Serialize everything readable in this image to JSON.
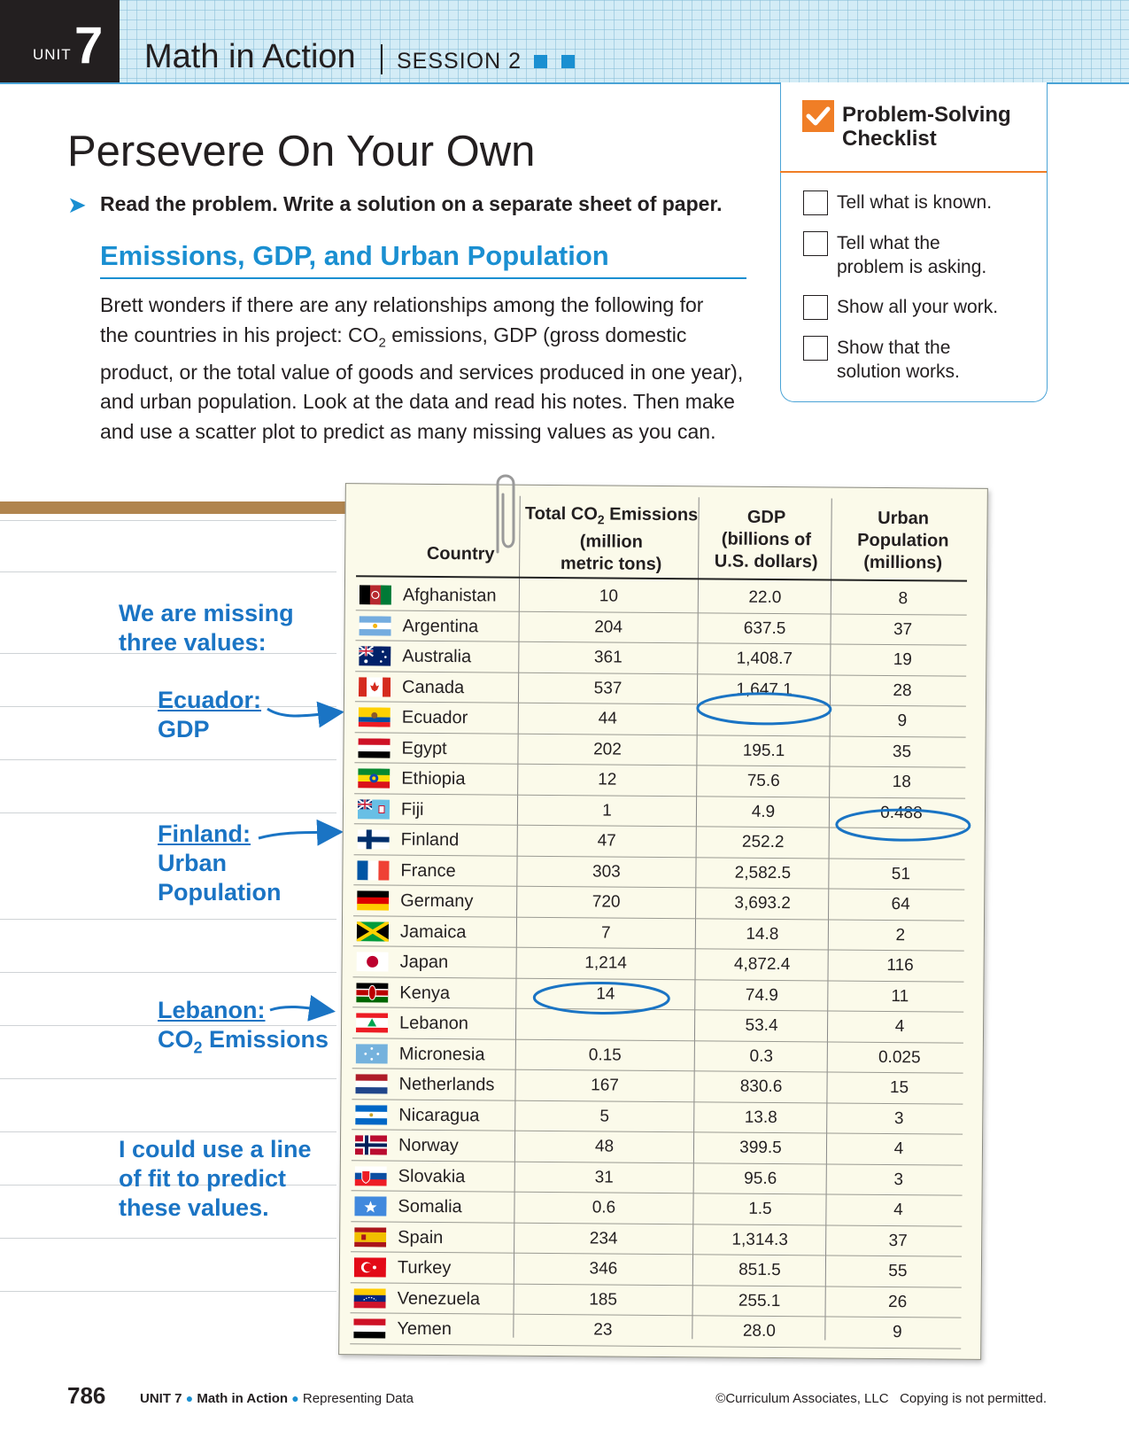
{
  "header": {
    "unit_label": "UNIT",
    "unit_number": "7",
    "title": "Math in Action",
    "session": "SESSION 2"
  },
  "page_title": "Persevere On Your Own",
  "instruction": "Read the problem. Write a solution on a separate sheet of paper.",
  "section_heading": "Emissions, GDP, and Urban Population",
  "paragraph": {
    "line1": "Brett wonders if there are any relationships among the following for",
    "line2_a": "the countries in his project: CO",
    "line2_sub": "2",
    "line2_b": " emissions, GDP (gross domestic",
    "line3": "product, or the total value of goods and services produced in one year),",
    "line4": "and urban population. Look at the data and read his notes. Then make",
    "line5": "and use a scatter plot to predict as many missing values as you can."
  },
  "checklist": {
    "title_line1": "Problem-Solving",
    "title_line2": "Checklist",
    "items": [
      {
        "line1": "Tell what is known.",
        "line2": ""
      },
      {
        "line1": "Tell what the",
        "line2": "problem is asking."
      },
      {
        "line1": "Show all your work.",
        "line2": ""
      },
      {
        "line1": "Show that the",
        "line2": "solution works."
      }
    ]
  },
  "notes": {
    "missing_line1": "We are missing",
    "missing_line2": "three values:",
    "ecuador_line1": "Ecuador:",
    "ecuador_line2": "GDP",
    "finland_line1": "Finland:",
    "finland_line2": "Urban",
    "finland_line3": "Population",
    "lebanon_line1": "Lebanon:",
    "lebanon_line2_a": "CO",
    "lebanon_line2_sub": "2",
    "lebanon_line2_b": " Emissions",
    "fit_line1": "I could use a line",
    "fit_line2": "of fit to predict",
    "fit_line3": "these values."
  },
  "table": {
    "headers": {
      "country": "Country",
      "co2_a": "Total CO",
      "co2_sub": "2",
      "co2_b": " Emissions",
      "co2_line2": "(million",
      "co2_line3": "metric tons)",
      "gdp_line1": "GDP",
      "gdp_line2": "(billions of",
      "gdp_line3": "U.S. dollars)",
      "urban_line1": "Urban",
      "urban_line2": "Population",
      "urban_line3": "(millions)"
    },
    "rows": [
      {
        "country": "Afghanistan",
        "co2": "10",
        "gdp": "22.0",
        "urban": "8"
      },
      {
        "country": "Argentina",
        "co2": "204",
        "gdp": "637.5",
        "urban": "37"
      },
      {
        "country": "Australia",
        "co2": "361",
        "gdp": "1,408.7",
        "urban": "19"
      },
      {
        "country": "Canada",
        "co2": "537",
        "gdp": "1,647.1",
        "urban": "28"
      },
      {
        "country": "Ecuador",
        "co2": "44",
        "gdp": "",
        "urban": "9"
      },
      {
        "country": "Egypt",
        "co2": "202",
        "gdp": "195.1",
        "urban": "35"
      },
      {
        "country": "Ethiopia",
        "co2": "12",
        "gdp": "75.6",
        "urban": "18"
      },
      {
        "country": "Fiji",
        "co2": "1",
        "gdp": "4.9",
        "urban": "0.488"
      },
      {
        "country": "Finland",
        "co2": "47",
        "gdp": "252.2",
        "urban": ""
      },
      {
        "country": "France",
        "co2": "303",
        "gdp": "2,582.5",
        "urban": "51"
      },
      {
        "country": "Germany",
        "co2": "720",
        "gdp": "3,693.2",
        "urban": "64"
      },
      {
        "country": "Jamaica",
        "co2": "7",
        "gdp": "14.8",
        "urban": "2"
      },
      {
        "country": "Japan",
        "co2": "1,214",
        "gdp": "4,872.4",
        "urban": "116"
      },
      {
        "country": "Kenya",
        "co2": "14",
        "gdp": "74.9",
        "urban": "11"
      },
      {
        "country": "Lebanon",
        "co2": "",
        "gdp": "53.4",
        "urban": "4"
      },
      {
        "country": "Micronesia",
        "co2": "0.15",
        "gdp": "0.3",
        "urban": "0.025"
      },
      {
        "country": "Netherlands",
        "co2": "167",
        "gdp": "830.6",
        "urban": "15"
      },
      {
        "country": "Nicaragua",
        "co2": "5",
        "gdp": "13.8",
        "urban": "3"
      },
      {
        "country": "Norway",
        "co2": "48",
        "gdp": "399.5",
        "urban": "4"
      },
      {
        "country": "Slovakia",
        "co2": "31",
        "gdp": "95.6",
        "urban": "3"
      },
      {
        "country": "Somalia",
        "co2": "0.6",
        "gdp": "1.5",
        "urban": "4"
      },
      {
        "country": "Spain",
        "co2": "234",
        "gdp": "1,314.3",
        "urban": "37"
      },
      {
        "country": "Turkey",
        "co2": "346",
        "gdp": "851.5",
        "urban": "55"
      },
      {
        "country": "Venezuela",
        "co2": "185",
        "gdp": "255.1",
        "urban": "26"
      },
      {
        "country": "Yemen",
        "co2": "23",
        "gdp": "28.0",
        "urban": "9"
      }
    ]
  },
  "footer": {
    "page_number": "786",
    "unit": "UNIT 7",
    "lesson": "Math in Action",
    "topic": "Representing Data",
    "copyright": "©Curriculum Associates, LLC",
    "notice": "Copying is not permitted."
  },
  "colors": {
    "accent_blue": "#1a8fd1",
    "note_blue": "#1a74c4",
    "orange": "#f07e26",
    "brown": "#b0844e"
  },
  "flags": [
    {
      "stripes": "v",
      "c": [
        "#000000",
        "#b7282e",
        "#007a36"
      ],
      "icon": "emblem"
    },
    {
      "stripes": "h",
      "c": [
        "#74acdf",
        "#ffffff",
        "#74acdf"
      ],
      "icon": "sun"
    },
    {
      "stripes": "h",
      "c": [
        "#012169"
      ],
      "icon": "au"
    },
    {
      "stripes": "ca",
      "c": [
        "#d52b1e",
        "#ffffff",
        "#d52b1e"
      ]
    },
    {
      "stripes": "hx",
      "c": [
        "#ffd100",
        "#034ea2",
        "#ed1c24"
      ],
      "icon": "emblem2"
    },
    {
      "stripes": "h",
      "c": [
        "#ce1126",
        "#ffffff",
        "#000000"
      ]
    },
    {
      "stripes": "h",
      "c": [
        "#078930",
        "#fcdd09",
        "#da121a"
      ],
      "icon": "star"
    },
    {
      "stripes": "h",
      "c": [
        "#68bfe5"
      ],
      "icon": "uk"
    },
    {
      "stripes": "nordic",
      "c": [
        "#ffffff",
        "#002f6c"
      ]
    },
    {
      "stripes": "v",
      "c": [
        "#0055a4",
        "#ffffff",
        "#ef4135"
      ]
    },
    {
      "stripes": "h",
      "c": [
        "#000000",
        "#dd0000",
        "#ffce00"
      ]
    },
    {
      "stripes": "jm",
      "c": [
        "#009b3a",
        "#fed100",
        "#000000"
      ]
    },
    {
      "stripes": "jp",
      "c": [
        "#ffffff",
        "#bc002d"
      ]
    },
    {
      "stripes": "h",
      "c": [
        "#000000",
        "#bb0000",
        "#006600"
      ],
      "icon": "shield"
    },
    {
      "stripes": "lb",
      "c": [
        "#ed1c24",
        "#ffffff",
        "#00a651"
      ]
    },
    {
      "stripes": "h",
      "c": [
        "#75b2dd"
      ],
      "icon": "stars"
    },
    {
      "stripes": "h",
      "c": [
        "#ae1c28",
        "#ffffff",
        "#21468b"
      ]
    },
    {
      "stripes": "h",
      "c": [
        "#0067c6",
        "#ffffff",
        "#0067c6"
      ],
      "icon": "dot"
    },
    {
      "stripes": "nordic2",
      "c": [
        "#ba0c2f",
        "#ffffff",
        "#00205b"
      ]
    },
    {
      "stripes": "h",
      "c": [
        "#ffffff",
        "#0b4ea2",
        "#ee1c25"
      ],
      "icon": "sk"
    },
    {
      "stripes": "h",
      "c": [
        "#4189dd"
      ],
      "icon": "whitestar"
    },
    {
      "stripes": "es",
      "c": [
        "#aa151b",
        "#f1bf00",
        "#aa151b"
      ]
    },
    {
      "stripes": "h",
      "c": [
        "#e30a17"
      ],
      "icon": "crescent"
    },
    {
      "stripes": "h",
      "c": [
        "#ffcc00",
        "#00247d",
        "#cf142b"
      ],
      "icon": "arc"
    },
    {
      "stripes": "h",
      "c": [
        "#ce1126",
        "#ffffff",
        "#000000"
      ]
    }
  ]
}
